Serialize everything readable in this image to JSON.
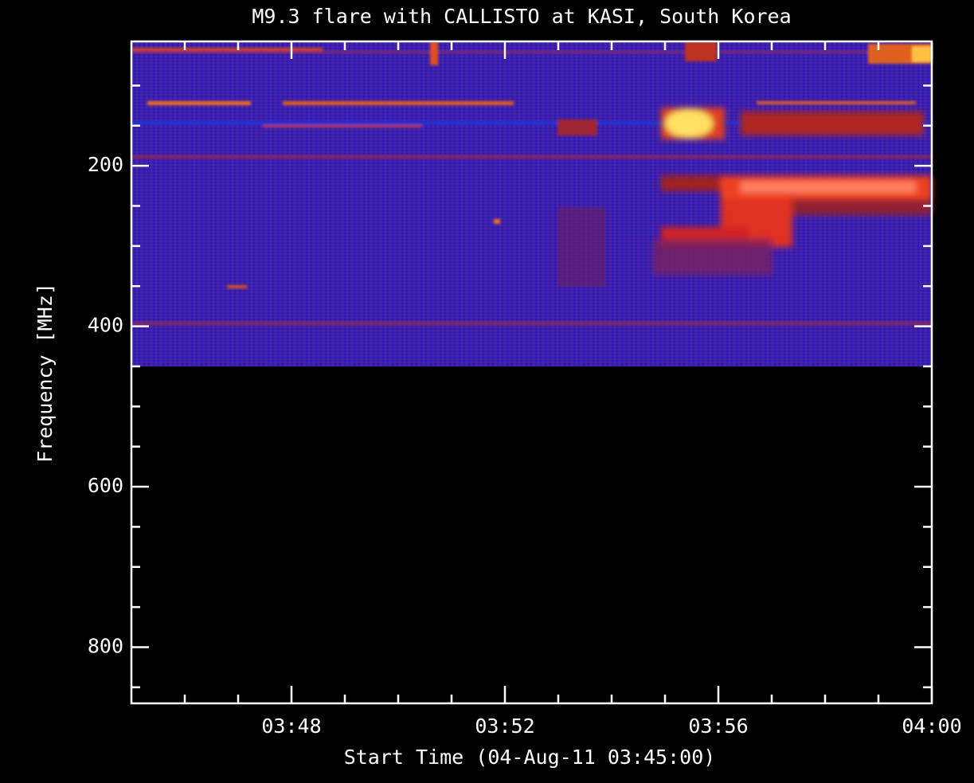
{
  "chart_data": {
    "type": "spectrogram",
    "title": "M9.3 flare with CALLISTO at KASI, South Korea",
    "xlabel": "Start Time (04-Aug-11 03:45:00)",
    "ylabel": "Frequency [MHz]",
    "xlim": [
      0,
      15
    ],
    "xticks": [
      {
        "value": 3,
        "label": "03:48"
      },
      {
        "value": 7,
        "label": "03:52"
      },
      {
        "value": 11,
        "label": "03:56"
      },
      {
        "value": 15,
        "label": "04:00"
      }
    ],
    "xminorticks": [
      1,
      2,
      4,
      5,
      6,
      8,
      9,
      10,
      12,
      13,
      14
    ],
    "ylim": [
      45,
      870
    ],
    "yreversed": true,
    "yticks": [
      200,
      400,
      600,
      800
    ],
    "yminorticks": [
      100,
      150,
      250,
      300,
      350,
      450,
      500,
      550,
      650,
      700,
      750,
      850
    ]
  }
}
